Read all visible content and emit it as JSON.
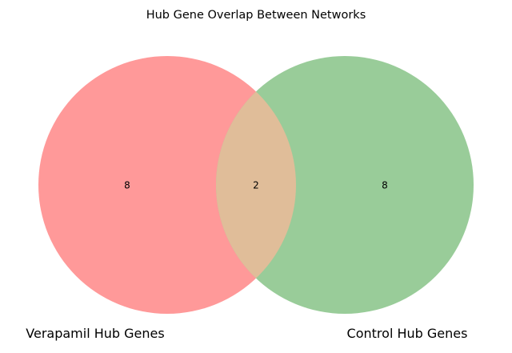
{
  "chart_data": {
    "type": "venn",
    "title": "Hub Gene Overlap Between Networks",
    "sets": [
      {
        "name": "Verapamil Hub Genes",
        "only_count": "8",
        "color": "#ff9999"
      },
      {
        "name": "Control Hub Genes",
        "only_count": "8",
        "color": "#99cc99"
      }
    ],
    "intersection": {
      "count": "2",
      "color": "#e0bd99"
    }
  }
}
